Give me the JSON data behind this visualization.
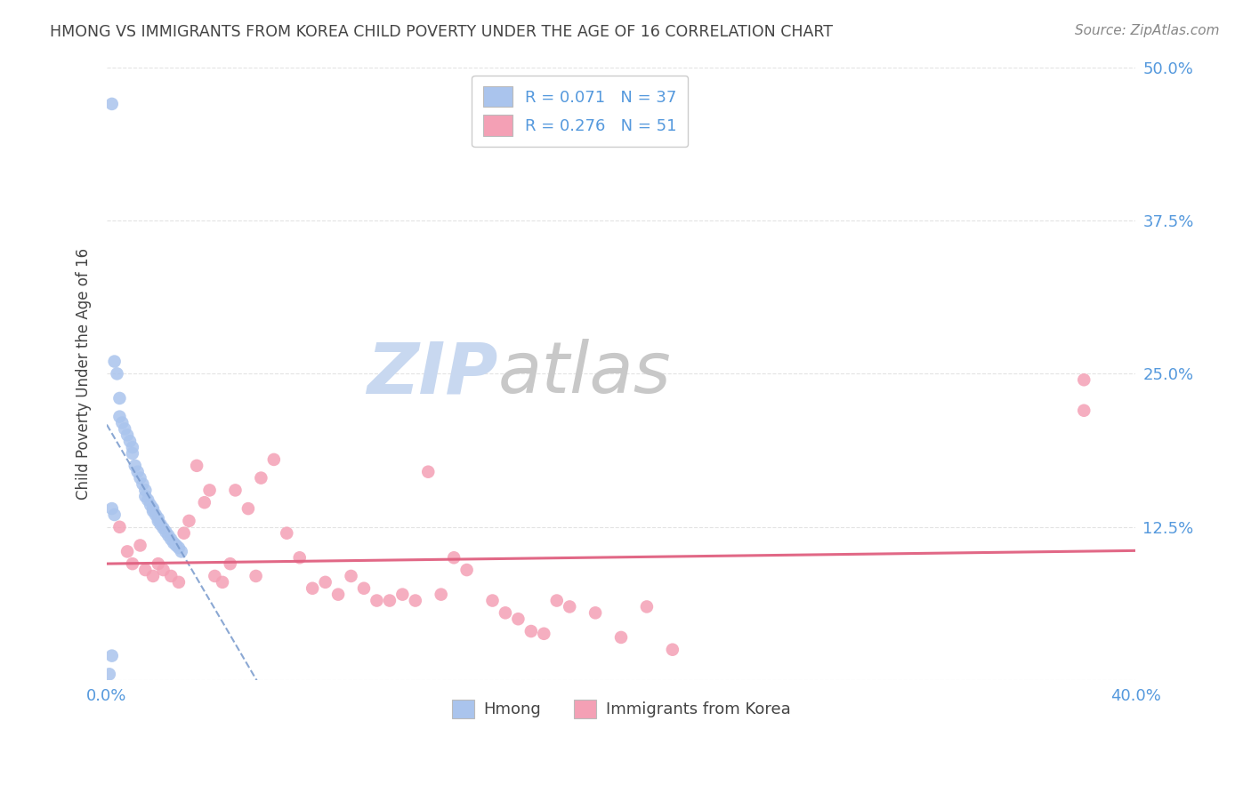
{
  "title": "HMONG VS IMMIGRANTS FROM KOREA CHILD POVERTY UNDER THE AGE OF 16 CORRELATION CHART",
  "source": "Source: ZipAtlas.com",
  "ylabel": "Child Poverty Under the Age of 16",
  "xlim": [
    0.0,
    0.4
  ],
  "ylim": [
    0.0,
    0.5
  ],
  "x_tick_positions": [
    0.0,
    0.1,
    0.2,
    0.3,
    0.4
  ],
  "x_tick_labels": [
    "0.0%",
    "",
    "",
    "",
    "40.0%"
  ],
  "y_tick_positions": [
    0.0,
    0.125,
    0.25,
    0.375,
    0.5
  ],
  "y_tick_labels": [
    "",
    "12.5%",
    "25.0%",
    "37.5%",
    "50.0%"
  ],
  "hmong_x": [
    0.002,
    0.003,
    0.004,
    0.005,
    0.005,
    0.006,
    0.007,
    0.008,
    0.009,
    0.01,
    0.01,
    0.011,
    0.012,
    0.013,
    0.014,
    0.015,
    0.015,
    0.016,
    0.017,
    0.018,
    0.018,
    0.019,
    0.02,
    0.02,
    0.021,
    0.022,
    0.023,
    0.024,
    0.025,
    0.026,
    0.027,
    0.028,
    0.029,
    0.002,
    0.003,
    0.002,
    0.001
  ],
  "hmong_y": [
    0.47,
    0.26,
    0.25,
    0.23,
    0.215,
    0.21,
    0.205,
    0.2,
    0.195,
    0.19,
    0.185,
    0.175,
    0.17,
    0.165,
    0.16,
    0.155,
    0.15,
    0.147,
    0.143,
    0.14,
    0.138,
    0.135,
    0.132,
    0.13,
    0.127,
    0.124,
    0.121,
    0.118,
    0.115,
    0.112,
    0.11,
    0.108,
    0.105,
    0.14,
    0.135,
    0.02,
    0.005
  ],
  "korea_x": [
    0.005,
    0.008,
    0.01,
    0.013,
    0.015,
    0.018,
    0.02,
    0.022,
    0.025,
    0.028,
    0.03,
    0.032,
    0.035,
    0.038,
    0.04,
    0.042,
    0.045,
    0.048,
    0.05,
    0.055,
    0.058,
    0.06,
    0.065,
    0.07,
    0.075,
    0.08,
    0.085,
    0.09,
    0.095,
    0.1,
    0.105,
    0.11,
    0.115,
    0.12,
    0.125,
    0.13,
    0.135,
    0.14,
    0.15,
    0.155,
    0.16,
    0.165,
    0.17,
    0.175,
    0.18,
    0.19,
    0.2,
    0.21,
    0.22,
    0.38,
    0.38
  ],
  "korea_y": [
    0.125,
    0.105,
    0.095,
    0.11,
    0.09,
    0.085,
    0.095,
    0.09,
    0.085,
    0.08,
    0.12,
    0.13,
    0.175,
    0.145,
    0.155,
    0.085,
    0.08,
    0.095,
    0.155,
    0.14,
    0.085,
    0.165,
    0.18,
    0.12,
    0.1,
    0.075,
    0.08,
    0.07,
    0.085,
    0.075,
    0.065,
    0.065,
    0.07,
    0.065,
    0.17,
    0.07,
    0.1,
    0.09,
    0.065,
    0.055,
    0.05,
    0.04,
    0.038,
    0.065,
    0.06,
    0.055,
    0.035,
    0.06,
    0.025,
    0.245,
    0.22
  ],
  "background_color": "#ffffff",
  "grid_color": "#dddddd",
  "title_color": "#444444",
  "blue_scatter_color": "#aac4ed",
  "pink_scatter_color": "#f4a0b5",
  "blue_line_color": "#7799cc",
  "pink_line_color": "#e06080",
  "source_color": "#888888",
  "axis_tick_color": "#5599dd",
  "watermark_zip_color": "#c8d8f0",
  "watermark_atlas_color": "#c8c8c8"
}
